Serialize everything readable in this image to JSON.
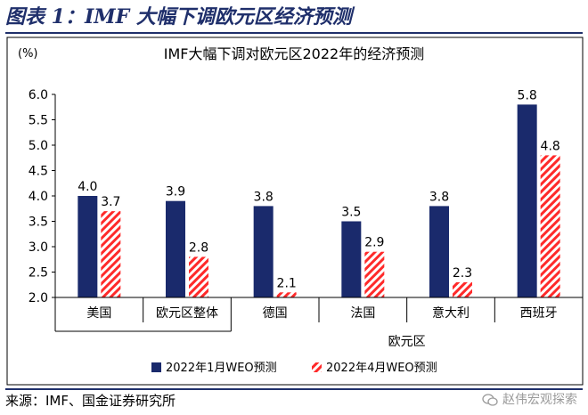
{
  "figure": {
    "title": "图表 1：IMF 大幅下调欧元区经济预测",
    "source": "来源：IMF、国金证券研究所",
    "watermark": "赵伟宏观探索",
    "watermark_icon": "wechat-icon"
  },
  "chart_data": {
    "type": "bar",
    "title": "IMF大幅下调对欧元区2022年的经济预测",
    "ylabel": "(%)",
    "ylim": [
      2.0,
      6.0
    ],
    "yticks": [
      "2.0",
      "2.5",
      "3.0",
      "3.5",
      "4.0",
      "4.5",
      "5.0",
      "5.5",
      "6.0"
    ],
    "categories": [
      "美国",
      "欧元区整体",
      "德国",
      "法国",
      "意大利",
      "西班牙"
    ],
    "group_label": "欧元区",
    "series": [
      {
        "name": "2022年1月WEO预测",
        "values": [
          4.0,
          3.9,
          3.8,
          3.5,
          3.8,
          5.8
        ],
        "labels": [
          "4.0",
          "3.9",
          "3.8",
          "3.5",
          "3.8",
          "5.8"
        ],
        "color": "#1a2a6c",
        "pattern": "solid"
      },
      {
        "name": "2022年4月WEO预测",
        "values": [
          3.7,
          2.8,
          2.1,
          2.9,
          2.3,
          4.8
        ],
        "labels": [
          "3.7",
          "2.8",
          "2.1",
          "2.9",
          "2.3",
          "4.8"
        ],
        "color": "#ff2a2a",
        "pattern": "hatch"
      }
    ]
  }
}
